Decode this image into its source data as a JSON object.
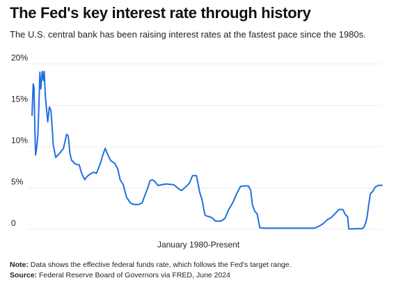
{
  "header": {
    "title": "The Fed's key interest rate through history",
    "subtitle": "The U.S. central bank has been raising interest rates at the fastest pace since the 1980s."
  },
  "chart_data": {
    "type": "line",
    "title": "The Fed's key interest rate through history",
    "xlabel": "January 1980-Present",
    "ylabel": "",
    "xlim": [
      1980.0,
      2024.5
    ],
    "ylim": [
      0,
      20
    ],
    "yticks": [
      {
        "value": 0,
        "label": "0"
      },
      {
        "value": 5,
        "label": "5%"
      },
      {
        "value": 10,
        "label": "10%"
      },
      {
        "value": 15,
        "label": "15%"
      },
      {
        "value": 20,
        "label": "20%"
      }
    ],
    "grid": true,
    "line_color": "#1f6fe0",
    "series": [
      {
        "name": "",
        "x": [
          1980.0,
          1980.15,
          1980.25,
          1980.35,
          1980.45,
          1980.58,
          1980.75,
          1980.9,
          1981.0,
          1981.12,
          1981.3,
          1981.45,
          1981.55,
          1981.7,
          1981.85,
          1982.0,
          1982.2,
          1982.4,
          1982.55,
          1982.7,
          1982.85,
          1983.0,
          1983.5,
          1984.0,
          1984.4,
          1984.6,
          1984.8,
          1985.0,
          1985.5,
          1986.0,
          1986.3,
          1986.7,
          1987.0,
          1987.4,
          1987.8,
          1988.2,
          1988.7,
          1989.0,
          1989.3,
          1989.6,
          1990.0,
          1990.5,
          1990.9,
          1991.2,
          1991.6,
          1992.0,
          1992.5,
          1993.0,
          1993.5,
          1994.0,
          1994.3,
          1994.7,
          1995.0,
          1995.3,
          1995.6,
          1996.0,
          1997.0,
          1998.0,
          1998.8,
          1999.0,
          1999.5,
          2000.0,
          2000.4,
          2000.6,
          2000.9,
          2001.0,
          2001.3,
          2001.6,
          2001.9,
          2002.0,
          2002.9,
          2003.3,
          2004.0,
          2004.5,
          2005.0,
          2005.5,
          2006.0,
          2006.5,
          2007.0,
          2007.5,
          2007.8,
          2008.0,
          2008.3,
          2008.6,
          2008.95,
          2009.5,
          2015.9,
          2016.5,
          2017.0,
          2017.5,
          2018.0,
          2018.5,
          2019.0,
          2019.5,
          2019.8,
          2020.1,
          2020.25,
          2022.0,
          2022.2,
          2022.4,
          2022.6,
          2022.8,
          2023.0,
          2023.3,
          2023.6,
          2024.0,
          2024.5
        ],
        "y": [
          13.8,
          17.6,
          17.2,
          12.5,
          9.0,
          9.8,
          11.5,
          15.8,
          19.0,
          17.0,
          19.1,
          18.0,
          19.1,
          16.0,
          14.5,
          13.0,
          14.8,
          14.4,
          12.5,
          10.2,
          9.5,
          8.7,
          9.2,
          9.8,
          11.5,
          11.3,
          9.3,
          8.4,
          7.9,
          7.8,
          6.8,
          6.0,
          6.4,
          6.7,
          6.9,
          6.8,
          8.0,
          9.0,
          9.8,
          9.1,
          8.3,
          8.0,
          7.3,
          6.0,
          5.4,
          3.9,
          3.2,
          3.0,
          3.0,
          3.2,
          4.0,
          5.0,
          5.9,
          6.0,
          5.8,
          5.3,
          5.5,
          5.4,
          4.8,
          4.7,
          5.1,
          5.6,
          6.5,
          6.5,
          6.5,
          6.0,
          4.5,
          3.6,
          2.1,
          1.7,
          1.4,
          1.0,
          1.0,
          1.3,
          2.4,
          3.2,
          4.3,
          5.2,
          5.25,
          5.25,
          4.7,
          3.0,
          2.2,
          1.9,
          0.2,
          0.15,
          0.15,
          0.4,
          0.7,
          1.15,
          1.4,
          1.9,
          2.4,
          2.4,
          1.8,
          1.55,
          0.05,
          0.1,
          0.3,
          0.8,
          1.6,
          3.1,
          4.3,
          4.6,
          5.1,
          5.33,
          5.33
        ]
      }
    ]
  },
  "notes": {
    "note_label": "Note:",
    "note_text": " Data shows the effective federal funds rate, which follows the Fed's target range.",
    "source_label": "Source:",
    "source_text": " Federal Reserve Board of Governors via FRED, June 2024"
  }
}
